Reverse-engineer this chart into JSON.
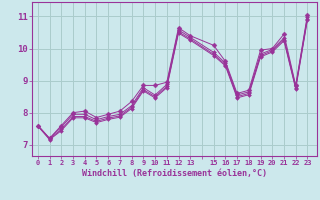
{
  "xlabel": "Windchill (Refroidissement éolien,°C)",
  "background_color": "#cce8ec",
  "grid_color": "#aacccc",
  "line_color": "#993399",
  "xlim": [
    -0.5,
    23.8
  ],
  "ylim": [
    6.65,
    11.45
  ],
  "xtick_labels": [
    "0",
    "1",
    "2",
    "3",
    "4",
    "5",
    "6",
    "7",
    "8",
    "9",
    "10",
    "11",
    "12",
    "13",
    "",
    "15",
    "16",
    "17",
    "18",
    "19",
    "20",
    "21",
    "22",
    "23"
  ],
  "xtick_positions": [
    0,
    1,
    2,
    3,
    4,
    5,
    6,
    7,
    8,
    9,
    10,
    11,
    12,
    13,
    14,
    15,
    16,
    17,
    18,
    19,
    20,
    21,
    22,
    23
  ],
  "yticks": [
    7,
    8,
    9,
    10,
    11
  ],
  "series1_x": [
    0,
    1,
    2,
    3,
    4,
    5,
    6,
    7,
    8,
    9,
    10,
    11,
    12,
    13,
    15,
    16,
    17,
    18,
    19,
    20,
    21,
    22,
    23
  ],
  "series1_y": [
    7.6,
    7.2,
    7.6,
    8.0,
    8.05,
    7.85,
    7.95,
    8.05,
    8.35,
    8.85,
    8.85,
    8.95,
    10.65,
    10.4,
    10.1,
    9.6,
    8.6,
    8.7,
    9.95,
    10.0,
    10.45,
    8.85,
    11.05
  ],
  "series2_x": [
    0,
    1,
    2,
    3,
    4,
    5,
    6,
    7,
    8,
    9,
    10,
    11,
    12,
    13,
    15,
    16,
    17,
    18,
    19,
    20,
    21,
    22,
    23
  ],
  "series2_y": [
    7.6,
    7.2,
    7.55,
    7.95,
    7.95,
    7.78,
    7.88,
    7.95,
    8.22,
    8.78,
    8.55,
    8.88,
    10.58,
    10.35,
    9.88,
    9.55,
    8.55,
    8.65,
    9.83,
    9.97,
    10.33,
    8.82,
    10.98
  ],
  "series3_x": [
    0,
    1,
    2,
    3,
    4,
    5,
    6,
    7,
    8,
    9,
    10,
    11,
    12,
    13,
    15,
    16,
    17,
    18,
    19,
    20,
    21,
    22,
    23
  ],
  "series3_y": [
    7.6,
    7.18,
    7.48,
    7.88,
    7.88,
    7.73,
    7.83,
    7.9,
    8.17,
    8.72,
    8.5,
    8.82,
    10.52,
    10.3,
    9.82,
    9.5,
    8.5,
    8.6,
    9.78,
    9.93,
    10.28,
    8.78,
    10.93
  ],
  "series4_x": [
    0,
    1,
    2,
    3,
    4,
    5,
    6,
    7,
    8,
    9,
    10,
    11,
    12,
    13,
    15,
    16,
    17,
    18,
    19,
    20,
    21,
    22,
    23
  ],
  "series4_y": [
    7.58,
    7.16,
    7.44,
    7.84,
    7.84,
    7.69,
    7.79,
    7.86,
    8.13,
    8.68,
    8.46,
    8.78,
    10.48,
    10.26,
    9.78,
    9.46,
    8.46,
    8.56,
    9.74,
    9.89,
    10.24,
    8.74,
    10.89
  ]
}
